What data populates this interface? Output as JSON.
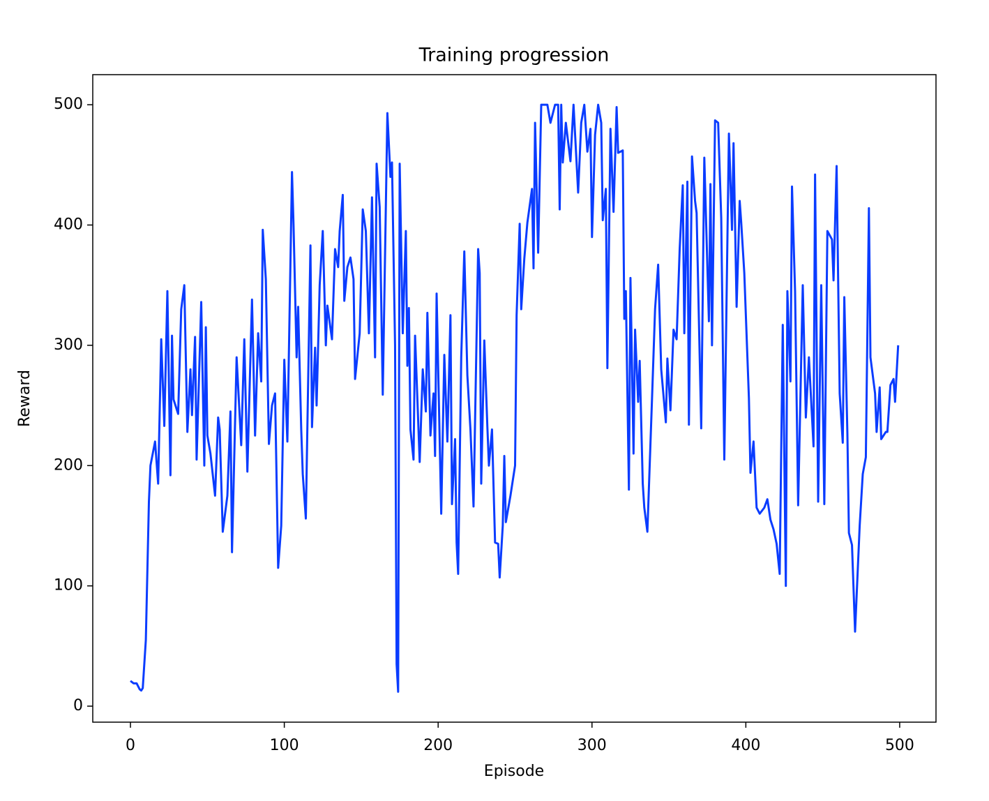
{
  "chart_data": {
    "type": "line",
    "title": "Training progression",
    "x_label": "Episode",
    "y_label": "Reward",
    "x": [
      0,
      2,
      4,
      6,
      7,
      8,
      10,
      12,
      13,
      16,
      18,
      20,
      22,
      24,
      26,
      27,
      28,
      31,
      33,
      35,
      37,
      39,
      40,
      42,
      43,
      46,
      48,
      49,
      50,
      52,
      55,
      57,
      58,
      60,
      63,
      65,
      66,
      69,
      72,
      74,
      76,
      77,
      79,
      81,
      83,
      85,
      86,
      88,
      90,
      92,
      94,
      96,
      98,
      100,
      102,
      105,
      106,
      108,
      109,
      111,
      112,
      114,
      117,
      118,
      120,
      121,
      123,
      125,
      127,
      128,
      131,
      133,
      135,
      136,
      138,
      139,
      141,
      143,
      145,
      146,
      149,
      151,
      153,
      155,
      157,
      159,
      160,
      162,
      164,
      167,
      169,
      170,
      172,
      173,
      174,
      175,
      177,
      179,
      180,
      181,
      182,
      184,
      185,
      188,
      190,
      192,
      193,
      195,
      197,
      198,
      199,
      202,
      204,
      206,
      208,
      209,
      211,
      212,
      213,
      215,
      217,
      219,
      221,
      223,
      226,
      227,
      228,
      230,
      232,
      233,
      235,
      237,
      239,
      240,
      242,
      243,
      244,
      247,
      250,
      251,
      253,
      254,
      256,
      258,
      261,
      262,
      263,
      265,
      267,
      271,
      273,
      276,
      278,
      279,
      280,
      281,
      283,
      286,
      288,
      291,
      293,
      295,
      297,
      299,
      300,
      302,
      304,
      306,
      307,
      309,
      310,
      312,
      314,
      316,
      317,
      320,
      321,
      322,
      324,
      325,
      327,
      328,
      330,
      331,
      333,
      334,
      336,
      339,
      341,
      343,
      345,
      348,
      349,
      351,
      353,
      355,
      357,
      359,
      360,
      362,
      363,
      365,
      367,
      368,
      371,
      373,
      376,
      377,
      378,
      380,
      382,
      384,
      386,
      389,
      391,
      392,
      394,
      396,
      397,
      399,
      402,
      403,
      405,
      407,
      409,
      412,
      414,
      416,
      418,
      420,
      422,
      424,
      426,
      427,
      429,
      430,
      432,
      434,
      437,
      439,
      441,
      444,
      445,
      447,
      449,
      451,
      453,
      456,
      457,
      459,
      461,
      463,
      464,
      466,
      467,
      469,
      471,
      474,
      476,
      478,
      480,
      481,
      484,
      485,
      487,
      488,
      491,
      492,
      494,
      496,
      497,
      499
    ],
    "series": [
      {
        "color": "#0a3cff",
        "values": [
          21,
          19,
          19,
          14,
          13,
          15,
          55,
          170,
          200,
          220,
          185,
          305,
          233,
          345,
          192,
          308,
          255,
          243,
          330,
          350,
          228,
          280,
          242,
          307,
          205,
          336,
          200,
          315,
          225,
          210,
          175,
          240,
          230,
          145,
          175,
          245,
          128,
          290,
          217,
          305,
          195,
          243,
          338,
          225,
          310,
          270,
          396,
          355,
          218,
          250,
          260,
          115,
          150,
          288,
          220,
          444,
          400,
          290,
          332,
          230,
          193,
          156,
          383,
          232,
          298,
          250,
          350,
          395,
          300,
          333,
          305,
          380,
          365,
          395,
          425,
          337,
          365,
          373,
          355,
          272,
          310,
          413,
          395,
          310,
          423,
          290,
          451,
          415,
          259,
          493,
          440,
          452,
          300,
          35,
          12,
          451,
          310,
          395,
          283,
          331,
          230,
          205,
          308,
          203,
          280,
          245,
          327,
          225,
          260,
          208,
          343,
          160,
          292,
          220,
          325,
          168,
          222,
          136,
          110,
          290,
          378,
          275,
          230,
          166,
          380,
          360,
          185,
          304,
          232,
          200,
          230,
          136,
          135,
          107,
          150,
          208,
          153,
          175,
          200,
          325,
          401,
          330,
          372,
          402,
          430,
          364,
          485,
          377,
          500,
          500,
          485,
          500,
          500,
          413,
          500,
          452,
          485,
          453,
          500,
          427,
          485,
          500,
          461,
          480,
          390,
          475,
          500,
          485,
          404,
          430,
          281,
          480,
          411,
          498,
          460,
          462,
          322,
          345,
          180,
          356,
          210,
          313,
          253,
          287,
          185,
          165,
          145,
          255,
          330,
          367,
          280,
          236,
          289,
          246,
          313,
          305,
          380,
          433,
          310,
          436,
          234,
          457,
          420,
          410,
          231,
          456,
          320,
          434,
          300,
          487,
          485,
          406,
          205,
          476,
          396,
          468,
          332,
          420,
          402,
          360,
          256,
          194,
          220,
          165,
          160,
          165,
          172,
          155,
          147,
          135,
          110,
          317,
          100,
          345,
          270,
          432,
          345,
          167,
          350,
          240,
          290,
          216,
          442,
          170,
          350,
          168,
          395,
          388,
          354,
          449,
          260,
          219,
          340,
          227,
          144,
          134,
          62,
          150,
          193,
          207,
          414,
          290,
          260,
          228,
          265,
          222,
          228,
          228,
          267,
          272,
          253,
          300
        ]
      }
    ],
    "xlim": [
      -24.5,
      523.6
    ],
    "ylim": [
      -13.3,
      525
    ],
    "xticks": [
      0,
      100,
      200,
      300,
      400,
      500
    ],
    "yticks": [
      0,
      100,
      200,
      300,
      400,
      500
    ]
  }
}
